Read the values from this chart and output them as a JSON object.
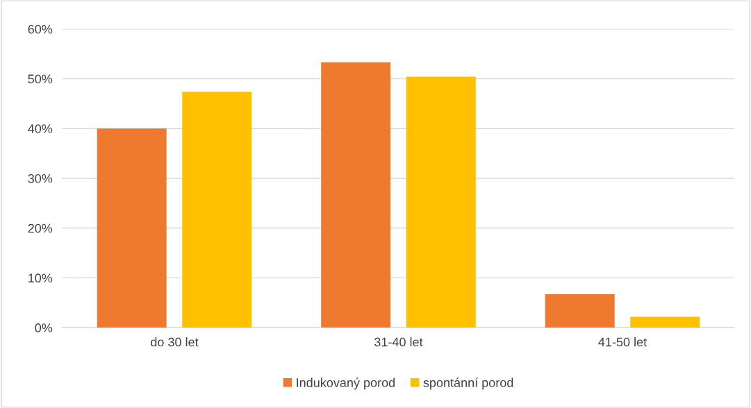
{
  "chart_data": {
    "type": "bar",
    "categories": [
      "do 30 let",
      "31-40 let",
      "41-50 let"
    ],
    "series": [
      {
        "name": "Indukovaný porod",
        "color": "#ee7a2f",
        "values": [
          40.0,
          53.3,
          6.7
        ]
      },
      {
        "name": "spontánní porod",
        "color": "#ffc000",
        "values": [
          47.4,
          50.4,
          2.2
        ]
      }
    ],
    "ylim": [
      0,
      60
    ],
    "yticks": [
      {
        "value": 0,
        "label": "0%"
      },
      {
        "value": 10,
        "label": "10%"
      },
      {
        "value": 20,
        "label": "20%"
      },
      {
        "value": 30,
        "label": "30%"
      },
      {
        "value": 40,
        "label": "40%"
      },
      {
        "value": 50,
        "label": "50%"
      },
      {
        "value": 60,
        "label": "60%"
      }
    ],
    "grid": "y",
    "legend": "bottom"
  }
}
